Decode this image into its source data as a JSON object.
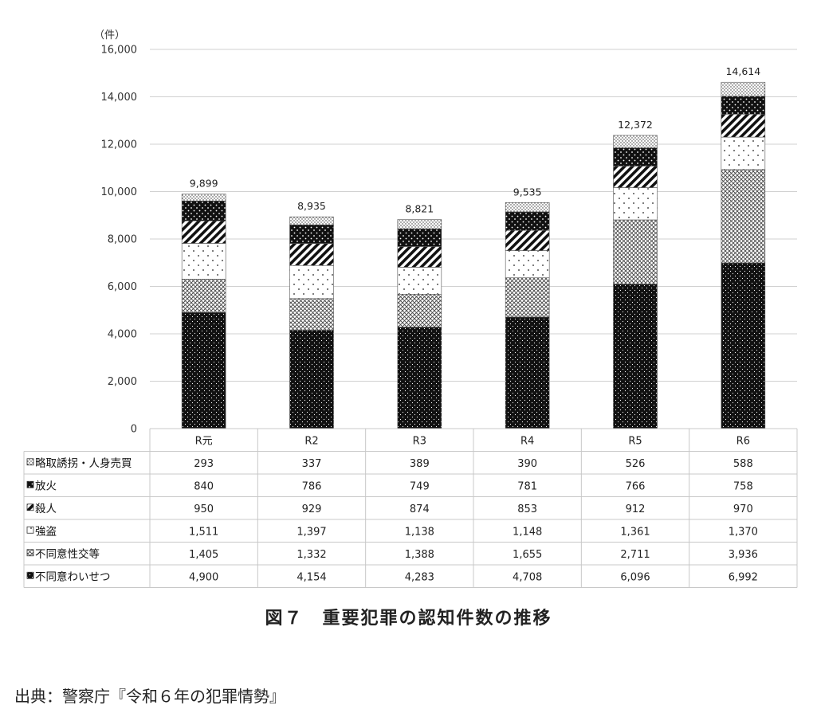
{
  "chart_data": {
    "type": "bar",
    "stacked": true,
    "y_unit_label": "（件）",
    "ylim": [
      0,
      16000
    ],
    "y_ticks": [
      "0",
      "2,000",
      "4,000",
      "6,000",
      "8,000",
      "10,000",
      "12,000",
      "14,000",
      "16,000"
    ],
    "grid": true,
    "categories": [
      "R元",
      "R2",
      "R3",
      "R4",
      "R5",
      "R6"
    ],
    "totals": [
      "9,899",
      "8,935",
      "8,821",
      "9,535",
      "12,372",
      "14,614"
    ],
    "series": [
      {
        "name": "不同意わいせつ",
        "values": [
          4900,
          4154,
          4283,
          4708,
          6096,
          6992
        ],
        "display": [
          "4,900",
          "4,154",
          "4,283",
          "4,708",
          "6,096",
          "6,992"
        ],
        "pattern": "dense-black"
      },
      {
        "name": "不同意性交等",
        "values": [
          1405,
          1332,
          1388,
          1655,
          2711,
          3936
        ],
        "display": [
          "1,405",
          "1,332",
          "1,388",
          "1,655",
          "2,711",
          "3,936"
        ],
        "pattern": "crosshatch"
      },
      {
        "name": "強盗",
        "values": [
          1511,
          1397,
          1138,
          1148,
          1361,
          1370
        ],
        "display": [
          "1,511",
          "1,397",
          "1,138",
          "1,148",
          "1,361",
          "1,370"
        ],
        "pattern": "sparse-dots"
      },
      {
        "name": "殺人",
        "values": [
          950,
          929,
          874,
          853,
          912,
          970
        ],
        "display": [
          "950",
          "929",
          "874",
          "853",
          "912",
          "970"
        ],
        "pattern": "diagonal"
      },
      {
        "name": "放火",
        "values": [
          840,
          786,
          749,
          781,
          766,
          758
        ],
        "display": [
          "840",
          "786",
          "749",
          "781",
          "766",
          "758"
        ],
        "pattern": "black-dots"
      },
      {
        "name": "略取誘拐・人身売買",
        "values": [
          293,
          337,
          389,
          390,
          526,
          588
        ],
        "display": [
          "293",
          "337",
          "389",
          "390",
          "526",
          "588"
        ],
        "pattern": "fine-dots"
      }
    ],
    "table_row_order": [
      "略取誘拐・人身売買",
      "放火",
      "殺人",
      "強盗",
      "不同意性交等",
      "不同意わいせつ"
    ]
  },
  "caption": "図７　重要犯罪の認知件数の推移",
  "source": "出典：警察庁『令和６年の犯罪情勢』"
}
